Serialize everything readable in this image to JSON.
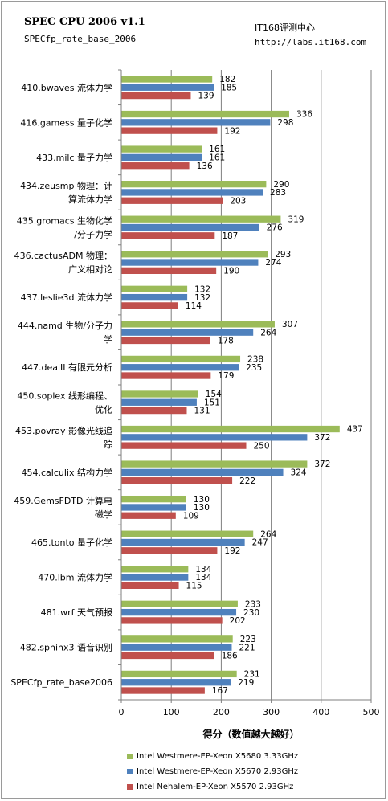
{
  "header": {
    "title": "SPEC CPU 2006 v1.1",
    "subtitle": "SPECfp_rate_base_2006",
    "brand": "IT168评测中心",
    "url": "http://labs.it168.com"
  },
  "chart_data": {
    "type": "bar",
    "orientation": "horizontal",
    "categories": [
      [
        "410.bwaves 流体力学"
      ],
      [
        "416.gamess 量子化学"
      ],
      [
        "433.milc 量子力学"
      ],
      [
        "434.zeusmp 物理：计",
        "算流体力学"
      ],
      [
        "435.gromacs 生物化学",
        "/分子力学"
      ],
      [
        "436.cactusADM 物理：",
        "广义相对论"
      ],
      [
        "437.leslie3d 流体力学"
      ],
      [
        "444.namd 生物/分子力",
        "学"
      ],
      [
        "447.dealII 有限元分析"
      ],
      [
        "450.soplex 线形编程、",
        "优化"
      ],
      [
        "453.povray 影像光线追",
        "踪"
      ],
      [
        "454.calculix 结构力学"
      ],
      [
        "459.GemsFDTD 计算电",
        "磁学"
      ],
      [
        "465.tonto 量子化学"
      ],
      [
        "470.lbm 流体力学"
      ],
      [
        "481.wrf 天气预报"
      ],
      [
        "482.sphinx3 语音识别"
      ],
      [
        "SPECfp_rate_base2006"
      ]
    ],
    "series": [
      {
        "name": "Intel Westmere-EP-Xeon X5680 3.33GHz",
        "color": "#9bbb59",
        "values": [
          182,
          336,
          161,
          290,
          319,
          293,
          132,
          307,
          238,
          154,
          437,
          372,
          130,
          264,
          134,
          233,
          223,
          231
        ]
      },
      {
        "name": "Intel Westmere-EP-Xeon X5670 2.93GHz",
        "color": "#4f81bd",
        "values": [
          185,
          298,
          161,
          283,
          276,
          274,
          132,
          264,
          235,
          151,
          372,
          324,
          130,
          247,
          134,
          230,
          221,
          219
        ]
      },
      {
        "name": "Intel Nehalem-EP-Xeon X5570 2.93GHz",
        "color": "#c0504d",
        "values": [
          139,
          192,
          136,
          203,
          187,
          190,
          114,
          178,
          179,
          131,
          250,
          222,
          109,
          192,
          115,
          202,
          186,
          167
        ]
      }
    ],
    "xlabel": "得分（数值越大越好）",
    "xlim": [
      0,
      500
    ],
    "xticks": [
      0,
      100,
      200,
      300,
      400,
      500
    ],
    "grid": true,
    "legend_position": "bottom"
  }
}
